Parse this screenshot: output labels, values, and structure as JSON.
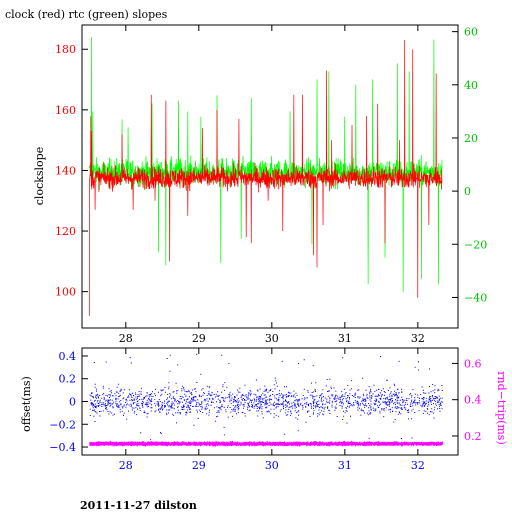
{
  "title": "clock (red) rtc (green) slopes",
  "footer": "2011-11-27 dilston",
  "colors": {
    "red": "#ff0000",
    "green": "#00ff00",
    "blue": "#0000ff",
    "magenta": "#ff00ff",
    "axis": "#000000"
  },
  "chart_data": [
    {
      "type": "line",
      "ylabel": "clockslope",
      "xlim": [
        27.4,
        32.55
      ],
      "ylim": [
        88,
        188
      ],
      "y2lim": [
        -51.5,
        62.5
      ],
      "x_ticks": [
        28,
        29,
        30,
        31,
        32
      ],
      "x_tick_labels": [
        "28",
        "29",
        "30",
        "31",
        "32"
      ],
      "y_ticks": [
        100,
        120,
        140,
        160,
        180
      ],
      "y_tick_labels": [
        "100",
        "120",
        "140",
        "160",
        "180"
      ],
      "y2_ticks": [
        -40,
        -20,
        0,
        20,
        40,
        60
      ],
      "y2_tick_labels": [
        "−40",
        "−20",
        "0",
        "20",
        "40",
        "60"
      ],
      "series": [
        {
          "name": "clock",
          "color": "#ff0000",
          "axis": "left",
          "baseline": 137.5,
          "band": 3.5,
          "spikes": [
            [
              27.5,
              92
            ],
            [
              27.52,
              158
            ],
            [
              27.53,
              153
            ],
            [
              27.58,
              127
            ],
            [
              27.95,
              152
            ],
            [
              28.1,
              127
            ],
            [
              28.35,
              165
            ],
            [
              28.4,
              130
            ],
            [
              28.55,
              163
            ],
            [
              28.6,
              110
            ],
            [
              28.85,
              125
            ],
            [
              29.05,
              154
            ],
            [
              29.25,
              160
            ],
            [
              29.55,
              157
            ],
            [
              29.65,
              118
            ],
            [
              29.72,
              116
            ],
            [
              29.95,
              130
            ],
            [
              30.15,
              120
            ],
            [
              30.3,
              165
            ],
            [
              30.42,
              165
            ],
            [
              30.57,
              112
            ],
            [
              30.62,
              108
            ],
            [
              30.7,
              122
            ],
            [
              30.75,
              173
            ],
            [
              30.82,
              150
            ],
            [
              31.1,
              155
            ],
            [
              31.3,
              158
            ],
            [
              31.45,
              162
            ],
            [
              31.55,
              116
            ],
            [
              31.75,
              150
            ],
            [
              31.82,
              183
            ],
            [
              31.93,
              180
            ],
            [
              32.0,
              98
            ],
            [
              32.15,
              122
            ],
            [
              32.25,
              172
            ]
          ]
        },
        {
          "name": "rtc",
          "color": "#00ff00",
          "axis": "right",
          "baseline": 7,
          "band": 5,
          "spikes": [
            [
              27.53,
              58
            ],
            [
              27.55,
              30
            ],
            [
              27.95,
              27
            ],
            [
              28.03,
              24
            ],
            [
              28.36,
              33
            ],
            [
              28.45,
              -23
            ],
            [
              28.55,
              -28
            ],
            [
              28.72,
              34
            ],
            [
              28.85,
              30
            ],
            [
              29.03,
              28
            ],
            [
              29.25,
              36
            ],
            [
              29.3,
              -27
            ],
            [
              29.58,
              -18
            ],
            [
              29.72,
              35
            ],
            [
              30.25,
              30
            ],
            [
              30.55,
              -20
            ],
            [
              30.62,
              42
            ],
            [
              30.78,
              45
            ],
            [
              31.0,
              28
            ],
            [
              31.15,
              40
            ],
            [
              31.32,
              -35
            ],
            [
              31.38,
              42
            ],
            [
              31.55,
              -25
            ],
            [
              31.72,
              48
            ],
            [
              31.8,
              -38
            ],
            [
              31.88,
              45
            ],
            [
              32.05,
              -33
            ],
            [
              32.22,
              57
            ],
            [
              32.28,
              -35
            ]
          ]
        }
      ]
    },
    {
      "type": "scatter",
      "ylabel": "offset(ms)",
      "y2label": "rnd−trip(ms)",
      "xlim": [
        27.4,
        32.55
      ],
      "ylim": [
        -0.47,
        0.47
      ],
      "y2lim": [
        0.095,
        0.685
      ],
      "x_ticks": [
        28,
        29,
        30,
        31,
        32
      ],
      "x_tick_labels": [
        "28",
        "29",
        "30",
        "31",
        "32"
      ],
      "y_ticks": [
        -0.4,
        -0.2,
        0,
        0.2,
        0.4
      ],
      "y_tick_labels": [
        "−0.4",
        "−0.2",
        "0",
        "0.2",
        "0.4"
      ],
      "y2_ticks": [
        0.2,
        0.4,
        0.6
      ],
      "y2_tick_labels": [
        "0.2",
        "0.4",
        "0.6"
      ],
      "series": [
        {
          "name": "offset",
          "color": "#0000ff",
          "axis": "left",
          "center": 0.0,
          "spread": 0.12,
          "outlier_range": [
            -0.38,
            0.42
          ]
        },
        {
          "name": "rnd-trip",
          "color": "#ff00ff",
          "axis": "right",
          "center": 0.157,
          "spread": 0.008
        }
      ]
    }
  ]
}
